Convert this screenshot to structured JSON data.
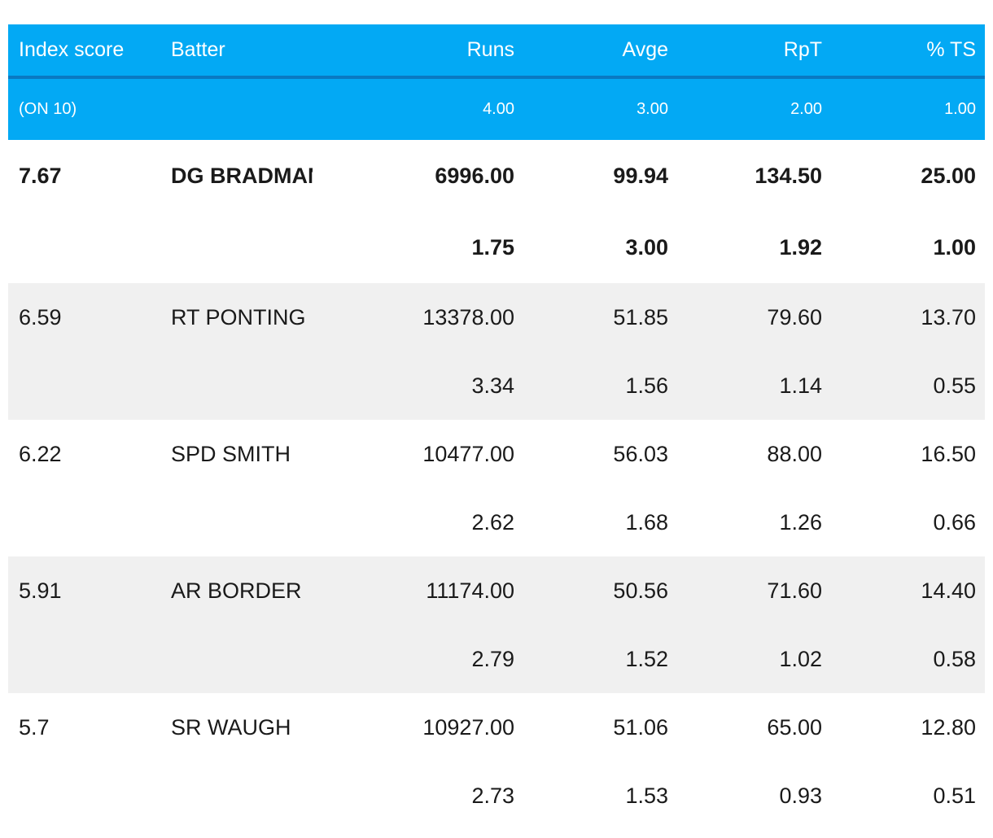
{
  "headers": {
    "index_score": "Index score",
    "batter": "Batter",
    "runs": "Runs",
    "avge": "Avge",
    "rpt": "RpT",
    "ts": "% TS"
  },
  "weights": {
    "label": "(ON 10)",
    "runs": "4.00",
    "avge": "3.00",
    "rpt": "2.00",
    "ts": "1.00"
  },
  "rows": [
    {
      "index": "7.67",
      "batter": "DG BRADMAN",
      "runs": "6996.00",
      "avge": "99.94",
      "rpt": "134.50",
      "ts": "25.00",
      "score_runs": "1.75",
      "score_avge": "3.00",
      "score_rpt": "1.92",
      "score_ts": "1.00"
    },
    {
      "index": "6.59",
      "batter": "RT PONTING",
      "runs": "13378.00",
      "avge": "51.85",
      "rpt": "79.60",
      "ts": "13.70",
      "score_runs": "3.34",
      "score_avge": "1.56",
      "score_rpt": "1.14",
      "score_ts": "0.55"
    },
    {
      "index": "6.22",
      "batter": "SPD SMITH",
      "runs": "10477.00",
      "avge": "56.03",
      "rpt": "88.00",
      "ts": "16.50",
      "score_runs": "2.62",
      "score_avge": "1.68",
      "score_rpt": "1.26",
      "score_ts": "0.66"
    },
    {
      "index": "5.91",
      "batter": "AR BORDER",
      "runs": "11174.00",
      "avge": "50.56",
      "rpt": "71.60",
      "ts": "14.40",
      "score_runs": "2.79",
      "score_avge": "1.52",
      "score_rpt": "1.02",
      "score_ts": "0.58"
    },
    {
      "index": "5.7",
      "batter": "SR WAUGH",
      "runs": "10927.00",
      "avge": "51.06",
      "rpt": "65.00",
      "ts": "12.80",
      "score_runs": "2.73",
      "score_avge": "1.53",
      "score_rpt": "0.93",
      "score_ts": "0.51"
    }
  ],
  "colors": {
    "header_bg": "#03a9f4",
    "header_rule": "#0a79c2",
    "row_shade": "#f0f0f0"
  }
}
